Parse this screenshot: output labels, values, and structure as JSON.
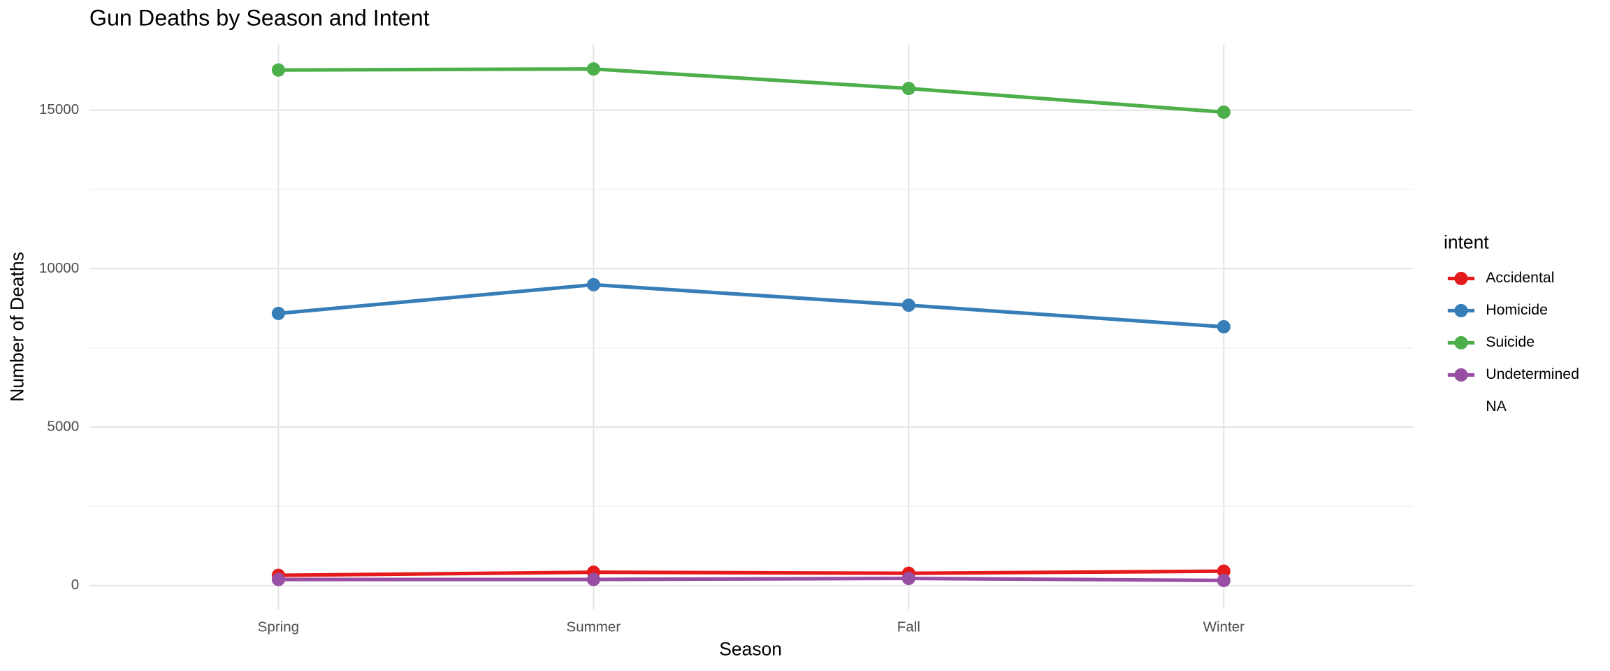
{
  "chart_data": {
    "type": "line",
    "title": "Gun Deaths by Season and Intent",
    "x_label": "Season",
    "y_label": "Number of Deaths",
    "legend_title": "intent",
    "categories": [
      "Spring",
      "Summer",
      "Fall",
      "Winter"
    ],
    "series": [
      {
        "name": "Accidental",
        "color": "#e41a1c",
        "values": [
          324,
          421,
          389,
          454
        ]
      },
      {
        "name": "Homicide",
        "color": "#377eb8",
        "values": [
          8587,
          9494,
          8846,
          8166
        ]
      },
      {
        "name": "Suicide",
        "color": "#4daf4a",
        "values": [
          16267,
          16300,
          15684,
          14938
        ]
      },
      {
        "name": "Undetermined",
        "color": "#984ea3",
        "values": [
          194,
          194,
          227,
          162
        ]
      },
      {
        "name": "NA",
        "color": null,
        "values": [
          null,
          null,
          null,
          null
        ]
      }
    ],
    "ylim": [
      -745,
      17077
    ],
    "yticks": [
      0,
      5000,
      10000,
      15000
    ],
    "yminor": [
      2500,
      7500,
      12500
    ],
    "grid": true,
    "legend": "right"
  }
}
